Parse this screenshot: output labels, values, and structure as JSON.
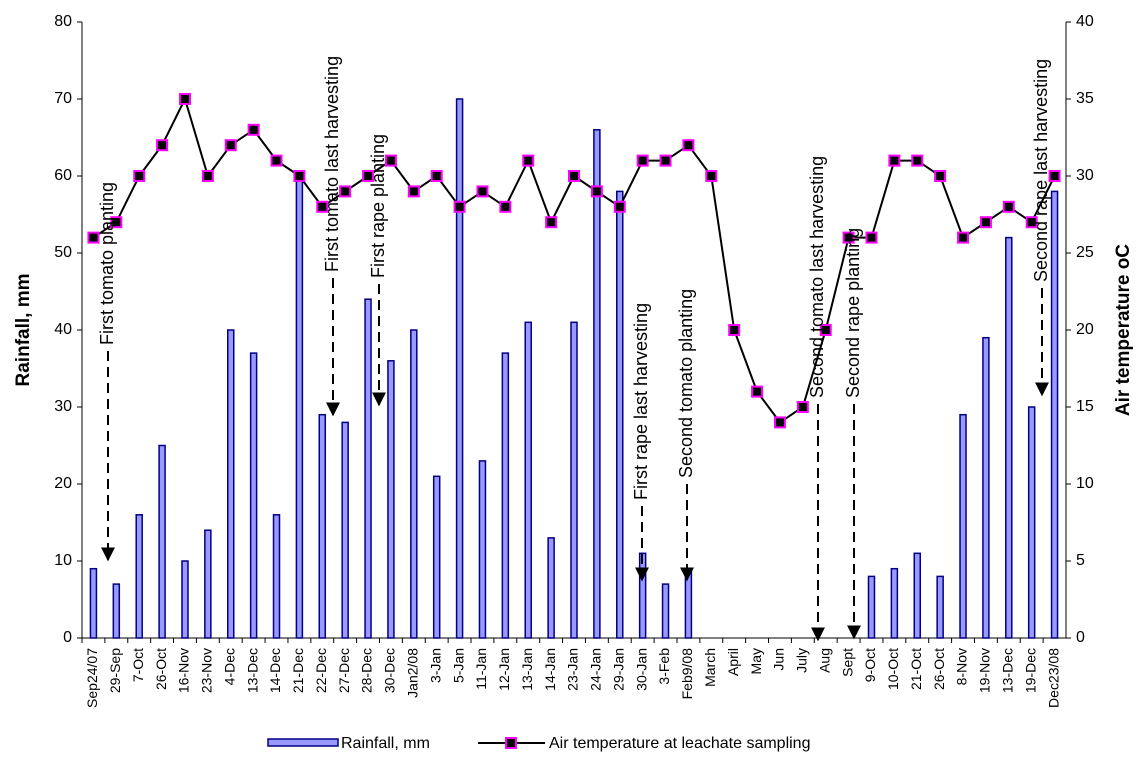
{
  "chart_data": {
    "type": "bar-line",
    "y_label": "Rainfall, mm",
    "y2_label": "Air temperature oC",
    "categories": [
      "Sep24/07",
      "29-Sep",
      "7-Oct",
      "26-Oct",
      "16-Nov",
      "23-Nov",
      "4-Dec",
      "13-Dec",
      "14-Dec",
      "21-Dec",
      "22-Dec",
      "27-Dec",
      "28-Dec",
      "30-Dec",
      "Jan2/08",
      "3-Jan",
      "5-Jan",
      "11-Jan",
      "12-Jan",
      "13-Jan",
      "14-Jan",
      "23-Jan",
      "24-Jan",
      "29-Jan",
      "30-Jan",
      "3-Feb",
      "Feb9/08",
      "March",
      "April",
      "May",
      "Jun",
      "July",
      "Aug",
      "Sept",
      "9-Oct",
      "10-Oct",
      "21-Oct",
      "26-Oct",
      "8-Nov",
      "19-Nov",
      "13-Dec",
      "19-Dec",
      "Dec23/08"
    ],
    "series": [
      {
        "name": "Rainfall, mm",
        "type": "bar",
        "color": "#9999ff",
        "edge": "#000080",
        "values": [
          9,
          7,
          16,
          25,
          10,
          14,
          40,
          37,
          16,
          60,
          29,
          28,
          44,
          36,
          40,
          21,
          70,
          23,
          37,
          41,
          13,
          41,
          66,
          58,
          11,
          7,
          9,
          null,
          null,
          null,
          null,
          null,
          null,
          null,
          8,
          9,
          11,
          8,
          29,
          39,
          52,
          30,
          58
        ]
      },
      {
        "name": "Air temperature at leachate sampling",
        "type": "line",
        "axis": "y2",
        "color": "#000000",
        "marker_edge": "#ff00ff",
        "values": [
          26,
          27,
          30,
          32,
          35,
          30,
          32,
          33,
          31,
          30,
          28,
          29,
          30,
          31,
          29,
          30,
          28,
          29,
          28,
          31,
          27,
          30,
          29,
          28,
          31,
          31,
          32,
          30,
          20,
          16,
          14,
          15,
          20,
          26,
          26,
          31,
          31,
          30,
          26,
          27,
          28,
          27,
          30
        ]
      }
    ],
    "ylim": [
      0,
      80
    ],
    "yticks": [
      0,
      10,
      20,
      30,
      40,
      50,
      60,
      70,
      80
    ],
    "y2lim": [
      0,
      40
    ],
    "y2ticks": [
      0,
      5,
      10,
      15,
      20,
      25,
      30,
      35,
      40
    ],
    "annotations": [
      "First tomato planting",
      "First tomato last harvesting",
      "First rape planting",
      "First rape last harvesting",
      "Second tomato planting",
      "Second tomato last harvesting",
      "Second rape planting",
      "Second rape last harvesting"
    ]
  }
}
